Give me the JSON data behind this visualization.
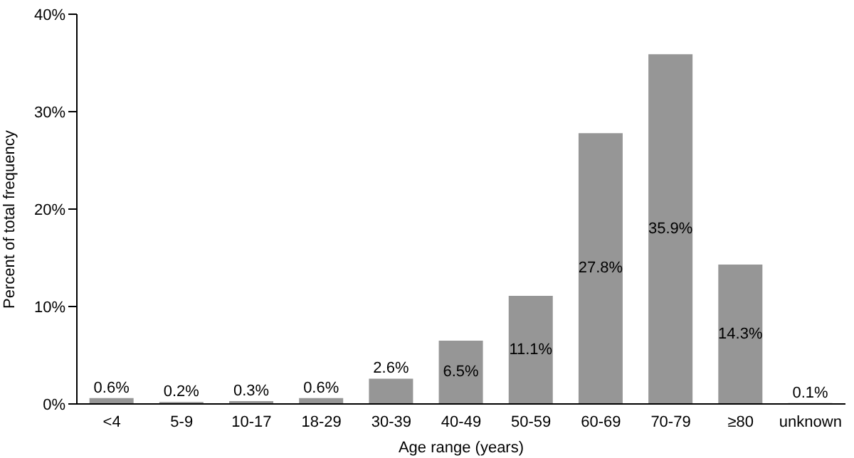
{
  "chart_data": {
    "type": "bar",
    "xlabel": "Age range (years)",
    "ylabel": "Percent of total frequency",
    "categories": [
      "<4",
      "5-9",
      "10-17",
      "18-29",
      "30-39",
      "40-49",
      "50-59",
      "60-69",
      "70-79",
      "≥80",
      "unknown"
    ],
    "values": [
      0.6,
      0.2,
      0.3,
      0.6,
      2.6,
      6.5,
      11.1,
      27.8,
      35.9,
      14.3,
      0.1
    ],
    "value_labels": [
      "0.6%",
      "0.2%",
      "0.3%",
      "0.6%",
      "2.6%",
      "6.5%",
      "11.1%",
      "27.8%",
      "35.9%",
      "14.3%",
      "0.1%"
    ],
    "color": "#969696",
    "ylim": [
      0,
      40
    ],
    "yticks": [
      {
        "value": 0,
        "label": "0%"
      },
      {
        "value": 10,
        "label": "10%"
      },
      {
        "value": 20,
        "label": "20%"
      },
      {
        "value": 30,
        "label": "30%"
      },
      {
        "value": 40,
        "label": "40%"
      }
    ],
    "grid": false
  }
}
